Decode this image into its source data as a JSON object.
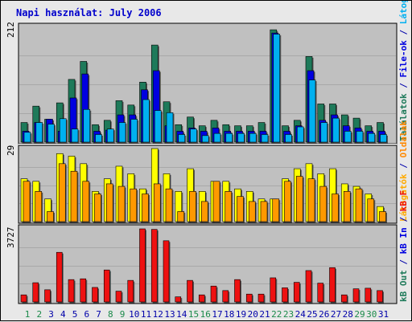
{
  "title": "Napi használat: July 2006",
  "colors": {
    "background": "#e8e8e8",
    "panel": "#c0c0c0",
    "hits": "#1e7a5a",
    "files": "#0000e0",
    "sites": "#00b0f0",
    "visits": "#ffff00",
    "pages": "#ff9900",
    "kb": "#ee1111",
    "weekend": "#1a8a4a",
    "weekday": "#0000aa"
  },
  "legend_right": {
    "top": [
      {
        "text": "Találatok",
        "color": "#1e7a5a"
      },
      {
        "text": " / ",
        "color": "#0000aa"
      },
      {
        "text": "File-ok",
        "color": "#0000e0"
      },
      {
        "text": " / ",
        "color": "#0000aa"
      },
      {
        "text": "Látogatók",
        "color": "#00b0f0"
      }
    ],
    "middle": [
      {
        "text": "Látogatók",
        "color": "#ffaa00"
      },
      {
        "text": " / ",
        "color": "#0000aa"
      },
      {
        "text": "Oldalak",
        "color": "#ff8800"
      }
    ],
    "bottom": [
      {
        "text": "kB Out",
        "color": "#1e7a5a"
      },
      {
        "text": " / ",
        "color": "#0000aa"
      },
      {
        "text": "kB In",
        "color": "#0000e0"
      },
      {
        "text": " / ",
        "color": "#0000aa"
      },
      {
        "text": "kB F",
        "color": "#ee1111"
      }
    ]
  },
  "chart_data": [
    {
      "type": "bar",
      "panel": "top",
      "ymax_label": "212",
      "ylim": [
        0,
        212
      ],
      "categories": [
        "1",
        "2",
        "3",
        "4",
        "5",
        "6",
        "7",
        "8",
        "9",
        "10",
        "11",
        "12",
        "13",
        "14",
        "15",
        "16",
        "17",
        "18",
        "19",
        "20",
        "21",
        "22",
        "23",
        "24",
        "25",
        "26",
        "27",
        "28",
        "29",
        "30",
        "31"
      ],
      "weekend_days": [
        "1",
        "2",
        "8",
        "9",
        "15",
        "16",
        "22",
        "23",
        "29",
        "30"
      ],
      "series": [
        {
          "name": "Találatok",
          "values": [
            36,
            66,
            42,
            72,
            115,
            148,
            32,
            40,
            76,
            68,
            110,
            178,
            74,
            32,
            46,
            30,
            40,
            32,
            30,
            30,
            36,
            206,
            30,
            40,
            157,
            70,
            70,
            50,
            44,
            30,
            36
          ]
        },
        {
          "name": "File-ok",
          "values": [
            20,
            36,
            42,
            20,
            81,
            125,
            20,
            22,
            50,
            50,
            96,
            131,
            30,
            20,
            26,
            20,
            26,
            20,
            20,
            20,
            20,
            200,
            20,
            30,
            131,
            40,
            50,
            30,
            26,
            20,
            20
          ]
        },
        {
          "name": "Látogatók",
          "values": [
            18,
            36,
            33,
            43,
            24,
            60,
            14,
            24,
            36,
            42,
            78,
            58,
            54,
            14,
            24,
            12,
            16,
            16,
            16,
            16,
            14,
            198,
            14,
            28,
            114,
            36,
            44,
            20,
            20,
            16,
            14
          ]
        }
      ]
    },
    {
      "type": "bar",
      "panel": "middle",
      "ymax_label": "29",
      "ylim": [
        0,
        29
      ],
      "categories": [
        "1",
        "2",
        "3",
        "4",
        "5",
        "6",
        "7",
        "8",
        "9",
        "10",
        "11",
        "12",
        "13",
        "14",
        "15",
        "16",
        "17",
        "18",
        "19",
        "20",
        "21",
        "22",
        "23",
        "24",
        "25",
        "26",
        "27",
        "28",
        "29",
        "30",
        "31"
      ],
      "series": [
        {
          "name": "Látogatók",
          "values": [
            17,
            16,
            9,
            27,
            26,
            23,
            12,
            17,
            22,
            19,
            13,
            29,
            19,
            12,
            21,
            12,
            16,
            16,
            13,
            12,
            9,
            9,
            17,
            21,
            23,
            19,
            21,
            15,
            14,
            11,
            6
          ]
        },
        {
          "name": "Oldalak",
          "values": [
            16,
            12,
            4,
            23,
            20,
            16,
            11,
            15,
            14,
            13,
            11,
            15,
            13,
            4,
            12,
            8,
            16,
            12,
            10,
            8,
            8,
            9,
            16,
            18,
            17,
            14,
            11,
            12,
            13,
            9,
            4
          ]
        }
      ]
    },
    {
      "type": "bar",
      "panel": "bottom",
      "ymax_label": "3727",
      "ylim": [
        0,
        3727
      ],
      "categories": [
        "1",
        "2",
        "3",
        "4",
        "5",
        "6",
        "7",
        "8",
        "9",
        "10",
        "11",
        "12",
        "13",
        "14",
        "15",
        "16",
        "17",
        "18",
        "19",
        "20",
        "21",
        "22",
        "23",
        "24",
        "25",
        "26",
        "27",
        "28",
        "29",
        "30",
        "31"
      ],
      "series": [
        {
          "name": "kB F",
          "values": [
            360,
            980,
            620,
            2530,
            1140,
            1180,
            740,
            1630,
            550,
            1100,
            3727,
            3700,
            3120,
            260,
            1100,
            360,
            810,
            580,
            1140,
            400,
            400,
            1230,
            720,
            1000,
            1600,
            960,
            1750,
            360,
            670,
            700,
            580
          ]
        }
      ]
    }
  ]
}
